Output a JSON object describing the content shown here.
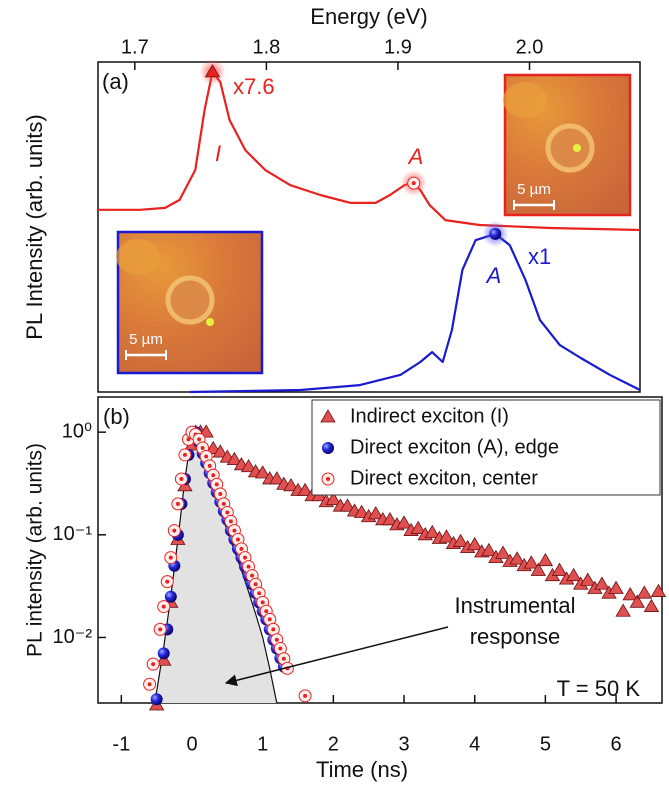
{
  "chart_data": [
    {
      "type": "line",
      "x_label": "Energy (eV)",
      "y_label": "PL Intensity (arb. units)",
      "xlim": [
        1.672,
        2.084
      ],
      "xticks": [
        1.7,
        1.8,
        1.9,
        {
          "value": 2,
          "label": "2.0"
        }
      ],
      "ylim": [
        0,
        10
      ],
      "series": [
        {
          "color": "#e8221e",
          "x": [
            1.672,
            1.704,
            1.723,
            1.734,
            1.746,
            1.753,
            1.759,
            1.765,
            1.772,
            1.784,
            1.799,
            1.818,
            1.841,
            1.864,
            1.883,
            1.894,
            1.905,
            1.912,
            1.917,
            1.924,
            1.936,
            1.962,
            2.016,
            2.084
          ],
          "values": [
            5.52,
            5.52,
            5.58,
            5.82,
            6.73,
            8.55,
            9.7,
            9.39,
            8.24,
            7.33,
            6.73,
            6.27,
            5.97,
            5.73,
            5.73,
            5.97,
            6.27,
            6.33,
            6.12,
            5.67,
            5.21,
            5.06,
            4.97,
            4.91
          ]
        },
        {
          "color": "#1a1ad0",
          "x": [
            1.742,
            1.826,
            1.871,
            1.902,
            1.917,
            1.926,
            1.934,
            1.941,
            1.949,
            1.959,
            1.974,
            1.985,
            1.997,
            2.008,
            2.023,
            2.039,
            2.061,
            2.084
          ],
          "values": [
            0,
            0.06,
            0.21,
            0.52,
            0.91,
            1.21,
            0.91,
            1.88,
            3.7,
            4.6,
            4.79,
            4.45,
            3.39,
            2.18,
            1.42,
            1.03,
            0.52,
            0.06
          ]
        }
      ],
      "annotations": [
        "(a)",
        "x7.6",
        "I",
        "A",
        "A",
        "x1"
      ],
      "insets": [
        {
          "scale_label": "5 µm",
          "border": "#e8221e"
        },
        {
          "scale_label": "5 µm",
          "border": "#1a1ad0"
        }
      ]
    },
    {
      "type": "scatter",
      "x_label": "Time (ns)",
      "y_label": "PL intensity (arb. units)",
      "xlim": [
        -1.33,
        6.65
      ],
      "xticks": [
        -1,
        0,
        1,
        2,
        3,
        4,
        5,
        6
      ],
      "ylim": [
        0.0023,
        2.2
      ],
      "log_y": true,
      "yticks": [
        {
          "value": 1,
          "label": "10⁰"
        },
        {
          "value": 0.1,
          "label": "10⁻¹"
        },
        {
          "value": 0.01,
          "label": "10⁻²"
        }
      ],
      "legend": "upper right",
      "series": [
        {
          "name": "Indirect exciton (I)",
          "marker": "triangle",
          "color": "#e05050",
          "x": [
            -0.5,
            -0.4,
            -0.3,
            -0.2,
            -0.1,
            0,
            0.05,
            0.12,
            0.2,
            0.3,
            0.4,
            0.5,
            0.6,
            0.7,
            0.8,
            0.9,
            1.0,
            1.1,
            1.2,
            1.3,
            1.4,
            1.5,
            1.6,
            1.7,
            1.8,
            1.9,
            2.0,
            2.1,
            2.2,
            2.3,
            2.4,
            2.5,
            2.6,
            2.7,
            2.8,
            2.9,
            3.0,
            3.1,
            3.2,
            3.3,
            3.4,
            3.5,
            3.6,
            3.7,
            3.8,
            3.9,
            4.0,
            4.1,
            4.2,
            4.3,
            4.4,
            4.5,
            4.6,
            4.7,
            4.8,
            4.9,
            5.0,
            5.1,
            5.2,
            5.3,
            5.4,
            5.5,
            5.6,
            5.7,
            5.8,
            5.9,
            6.0,
            6.1,
            6.2,
            6.3,
            6.4,
            6.5,
            6.6
          ],
          "values": [
            0.0022,
            0.006,
            0.022,
            0.09,
            0.3,
            0.75,
            1.0,
            1.0,
            1.0,
            0.69,
            0.64,
            0.57,
            0.54,
            0.48,
            0.46,
            0.41,
            0.4,
            0.35,
            0.35,
            0.31,
            0.3,
            0.27,
            0.27,
            0.24,
            0.24,
            0.21,
            0.22,
            0.19,
            0.19,
            0.17,
            0.165,
            0.15,
            0.16,
            0.14,
            0.14,
            0.125,
            0.13,
            0.11,
            0.115,
            0.1,
            0.105,
            0.092,
            0.095,
            0.082,
            0.086,
            0.075,
            0.08,
            0.068,
            0.07,
            0.06,
            0.066,
            0.055,
            0.058,
            0.05,
            0.053,
            0.045,
            0.056,
            0.04,
            0.045,
            0.037,
            0.04,
            0.033,
            0.036,
            0.03,
            0.033,
            0.027,
            0.03,
            0.018,
            0.026,
            0.022,
            0.027,
            0.02,
            0.028
          ]
        },
        {
          "name": "Direct exciton (A), edge",
          "marker": "sphere",
          "color": "#1a1ad0",
          "x": [
            -0.5,
            -0.4,
            -0.35,
            -0.3,
            -0.25,
            -0.2,
            -0.15,
            -0.1,
            -0.05,
            0,
            0.05,
            0.1,
            0.15,
            0.2,
            0.25,
            0.3,
            0.35,
            0.4,
            0.45,
            0.5,
            0.55,
            0.6,
            0.65,
            0.7,
            0.75,
            0.8,
            0.85,
            0.9,
            0.95,
            1.0,
            1.05,
            1.1,
            1.15,
            1.2,
            1.25,
            1.3
          ],
          "values": [
            0.0025,
            0.007,
            0.012,
            0.025,
            0.05,
            0.1,
            0.2,
            0.35,
            0.6,
            0.95,
            1.0,
            0.8,
            0.62,
            0.5,
            0.4,
            0.32,
            0.26,
            0.21,
            0.17,
            0.14,
            0.11,
            0.09,
            0.073,
            0.06,
            0.049,
            0.04,
            0.033,
            0.027,
            0.022,
            0.018,
            0.015,
            0.012,
            0.0095,
            0.0078,
            0.0063,
            0.0052
          ]
        },
        {
          "name": "Direct exciton, center",
          "marker": "ring",
          "color": "#e8221e",
          "x": [
            -0.6,
            -0.55,
            -0.45,
            -0.4,
            -0.35,
            -0.3,
            -0.25,
            -0.2,
            -0.15,
            -0.1,
            -0.05,
            0,
            0.05,
            0.1,
            0.15,
            0.2,
            0.25,
            0.3,
            0.35,
            0.4,
            0.45,
            0.5,
            0.55,
            0.6,
            0.65,
            0.7,
            0.75,
            0.8,
            0.85,
            0.9,
            0.95,
            1.0,
            1.05,
            1.1,
            1.15,
            1.2,
            1.25,
            1.3,
            1.35,
            1.6
          ],
          "values": [
            0.0035,
            0.0055,
            0.012,
            0.02,
            0.035,
            0.06,
            0.11,
            0.2,
            0.35,
            0.6,
            0.85,
            1.0,
            0.95,
            0.85,
            0.7,
            0.58,
            0.47,
            0.38,
            0.31,
            0.25,
            0.2,
            0.165,
            0.135,
            0.11,
            0.09,
            0.073,
            0.06,
            0.049,
            0.04,
            0.033,
            0.027,
            0.022,
            0.018,
            0.015,
            0.012,
            0.0095,
            0.0078,
            0.0062,
            0.005,
            0.0027
          ]
        }
      ],
      "response": {
        "color": "#e2e2e2",
        "x": [
          -0.55,
          -0.5,
          -0.4,
          -0.3,
          -0.2,
          -0.1,
          0,
          0.1,
          0.2,
          0.3,
          0.4,
          0.5,
          0.6,
          0.7,
          0.8,
          0.9,
          1.0,
          1.1,
          1.2
        ],
        "values": [
          0.0023,
          0.003,
          0.008,
          0.025,
          0.09,
          0.35,
          1.0,
          0.65,
          0.42,
          0.27,
          0.17,
          0.11,
          0.07,
          0.045,
          0.028,
          0.017,
          0.01,
          0.005,
          0.0023
        ]
      },
      "annotations": [
        "(b)",
        "T = 50 K",
        "Instrumental",
        "response"
      ]
    }
  ]
}
